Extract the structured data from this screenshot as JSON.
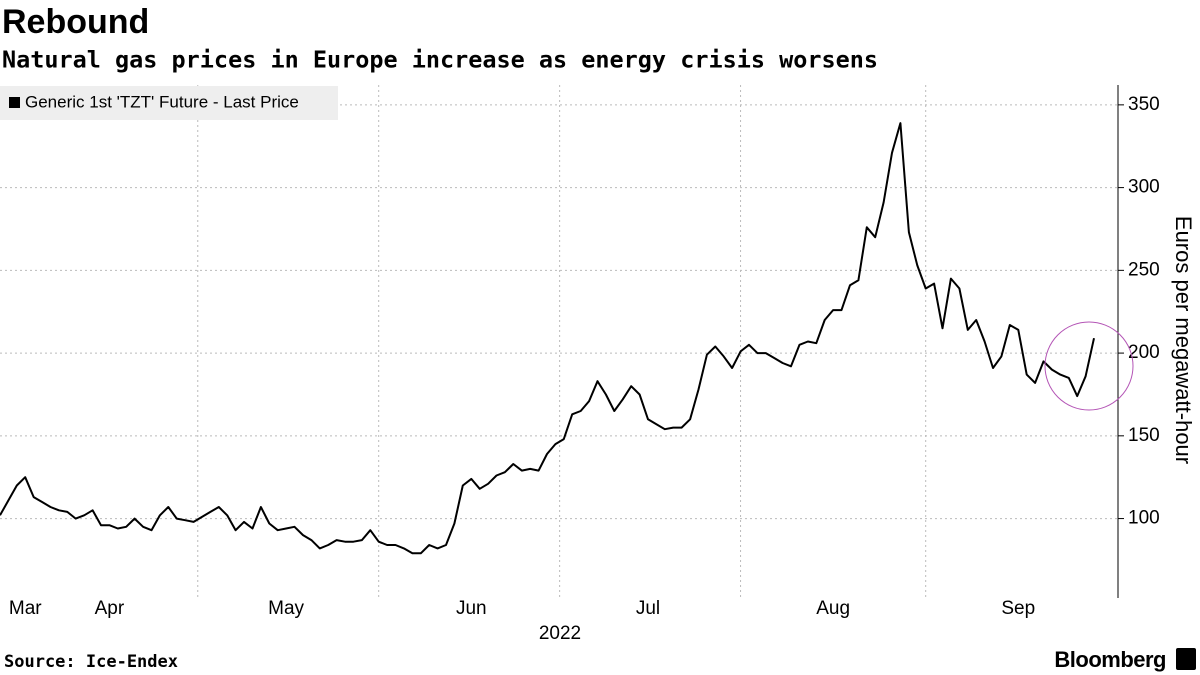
{
  "chart_data": {
    "type": "line",
    "title": "Rebound",
    "subtitle": "Natural gas prices in Europe increase as energy crisis worsens",
    "x_label": "2022",
    "y_label": "Euros per megawatt-hour",
    "source": "Source: Ice-Endex",
    "brand": "Bloomberg",
    "legend": "top-left",
    "grid": true,
    "ylim": [
      52,
      362
    ],
    "yticks": [
      100,
      150,
      200,
      250,
      300,
      350
    ],
    "categories": [
      null,
      null,
      null,
      "Mar",
      null,
      null,
      null,
      null,
      null,
      null,
      null,
      null,
      null,
      "Apr",
      null,
      null,
      null,
      null,
      null,
      null,
      null,
      null,
      null,
      null,
      null,
      null,
      null,
      null,
      null,
      null,
      null,
      null,
      null,
      null,
      "May",
      null,
      null,
      null,
      null,
      null,
      null,
      null,
      null,
      null,
      null,
      null,
      null,
      null,
      null,
      null,
      null,
      null,
      null,
      null,
      null,
      null,
      "Jun",
      null,
      null,
      null,
      null,
      null,
      null,
      null,
      null,
      null,
      null,
      null,
      null,
      null,
      null,
      null,
      null,
      null,
      null,
      null,
      null,
      "Jul",
      null,
      null,
      null,
      null,
      null,
      null,
      null,
      null,
      null,
      null,
      null,
      null,
      null,
      null,
      null,
      null,
      null,
      null,
      null,
      null,
      null,
      "Aug",
      null,
      null,
      null,
      null,
      null,
      null,
      null,
      null,
      null,
      null,
      null,
      null,
      null,
      null,
      null,
      null,
      null,
      null,
      null,
      null,
      null,
      "Sep",
      null,
      null,
      null,
      null,
      null,
      null,
      null,
      null,
      null
    ],
    "series": [
      {
        "name": "Generic 1st 'TZT' Future - Last Price",
        "color": "#000000",
        "values": [
          102,
          111,
          120,
          125,
          113,
          110,
          107,
          105,
          104,
          100,
          102,
          105,
          96,
          96,
          94,
          95,
          100,
          95,
          93,
          102,
          107,
          100,
          99,
          98,
          101,
          104,
          107,
          102,
          93,
          98,
          94,
          107,
          97,
          93,
          94,
          95,
          90,
          87,
          82,
          84,
          87,
          86,
          86,
          87,
          93,
          86,
          84,
          84,
          82,
          79,
          79,
          84,
          82,
          84,
          97,
          120,
          124,
          118,
          121,
          126,
          128,
          133,
          129,
          130,
          129,
          139,
          145,
          148,
          163,
          165,
          171,
          183,
          175,
          165,
          172,
          180,
          175,
          160,
          157,
          154,
          155,
          155,
          160,
          178,
          199,
          204,
          198,
          191,
          201,
          205,
          200,
          200,
          197,
          194,
          192,
          205,
          207,
          206,
          220,
          226,
          226,
          241,
          244,
          276,
          270,
          291,
          321,
          339,
          273,
          253,
          239,
          242,
          215,
          245,
          239,
          214,
          220,
          207,
          191,
          198,
          217,
          214,
          187,
          182,
          195,
          190,
          187,
          185,
          174,
          186,
          209
        ]
      }
    ]
  }
}
